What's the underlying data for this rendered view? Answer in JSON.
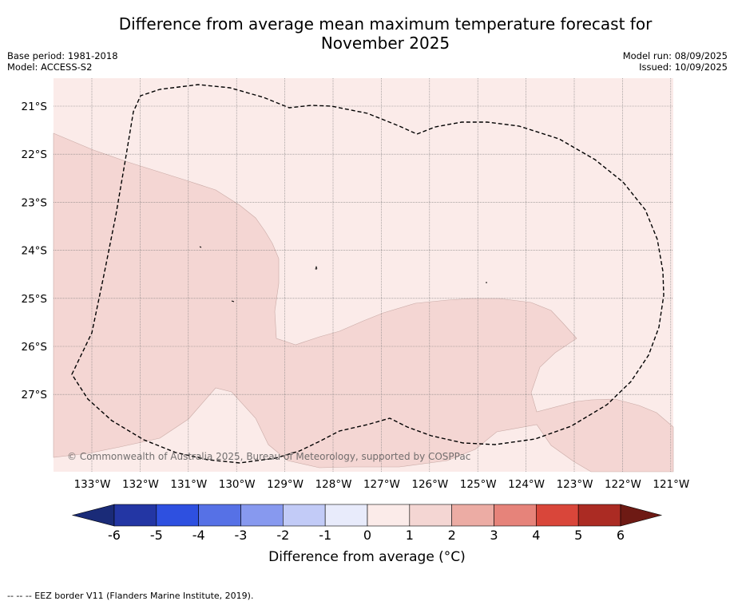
{
  "header": {
    "title_line1": "Difference from average mean maximum temperature forecast for",
    "title_line2": "November 2025",
    "base_period": "Base period: 1981-2018",
    "model": "Model: ACCESS-S2",
    "model_run": "Model run: 08/09/2025",
    "issued": "Issued: 10/09/2025"
  },
  "map": {
    "lat_labels": [
      "21°S",
      "22°S",
      "23°S",
      "24°S",
      "25°S",
      "26°S",
      "27°S"
    ],
    "lon_labels": [
      "133°W",
      "132°W",
      "131°W",
      "130°W",
      "129°W",
      "128°W",
      "127°W",
      "126°W",
      "125°W",
      "124°W",
      "123°W",
      "122°W",
      "121°W"
    ],
    "colors": {
      "anomaly_0_to_1": "#fbebe9",
      "anomaly_1_to_2": "#f4d6d3",
      "grid": "#7a7a7a",
      "eez": "#000000"
    },
    "copyright": "© Commonwealth of Australia 2025, Bureau of Meteorology, supported by COSPPac"
  },
  "colorbar": {
    "ticks": [
      "-6",
      "-5",
      "-4",
      "-3",
      "-2",
      "-1",
      "0",
      "1",
      "2",
      "3",
      "4",
      "5",
      "6"
    ],
    "colors": [
      "#2336a4",
      "#2e50e0",
      "#5671e6",
      "#8799ef",
      "#c2cbf7",
      "#e8ebfb",
      "#fbebe9",
      "#f4d6d3",
      "#ecaca4",
      "#e6837a",
      "#d9463a",
      "#ab2b23"
    ],
    "under_color": "#1a2b78",
    "over_color": "#6e1a14",
    "title": "Difference from average (°C)"
  },
  "footer": {
    "legend_text": "--  --  -- EEZ border V11 (Flanders Marine Institute, 2019)."
  }
}
